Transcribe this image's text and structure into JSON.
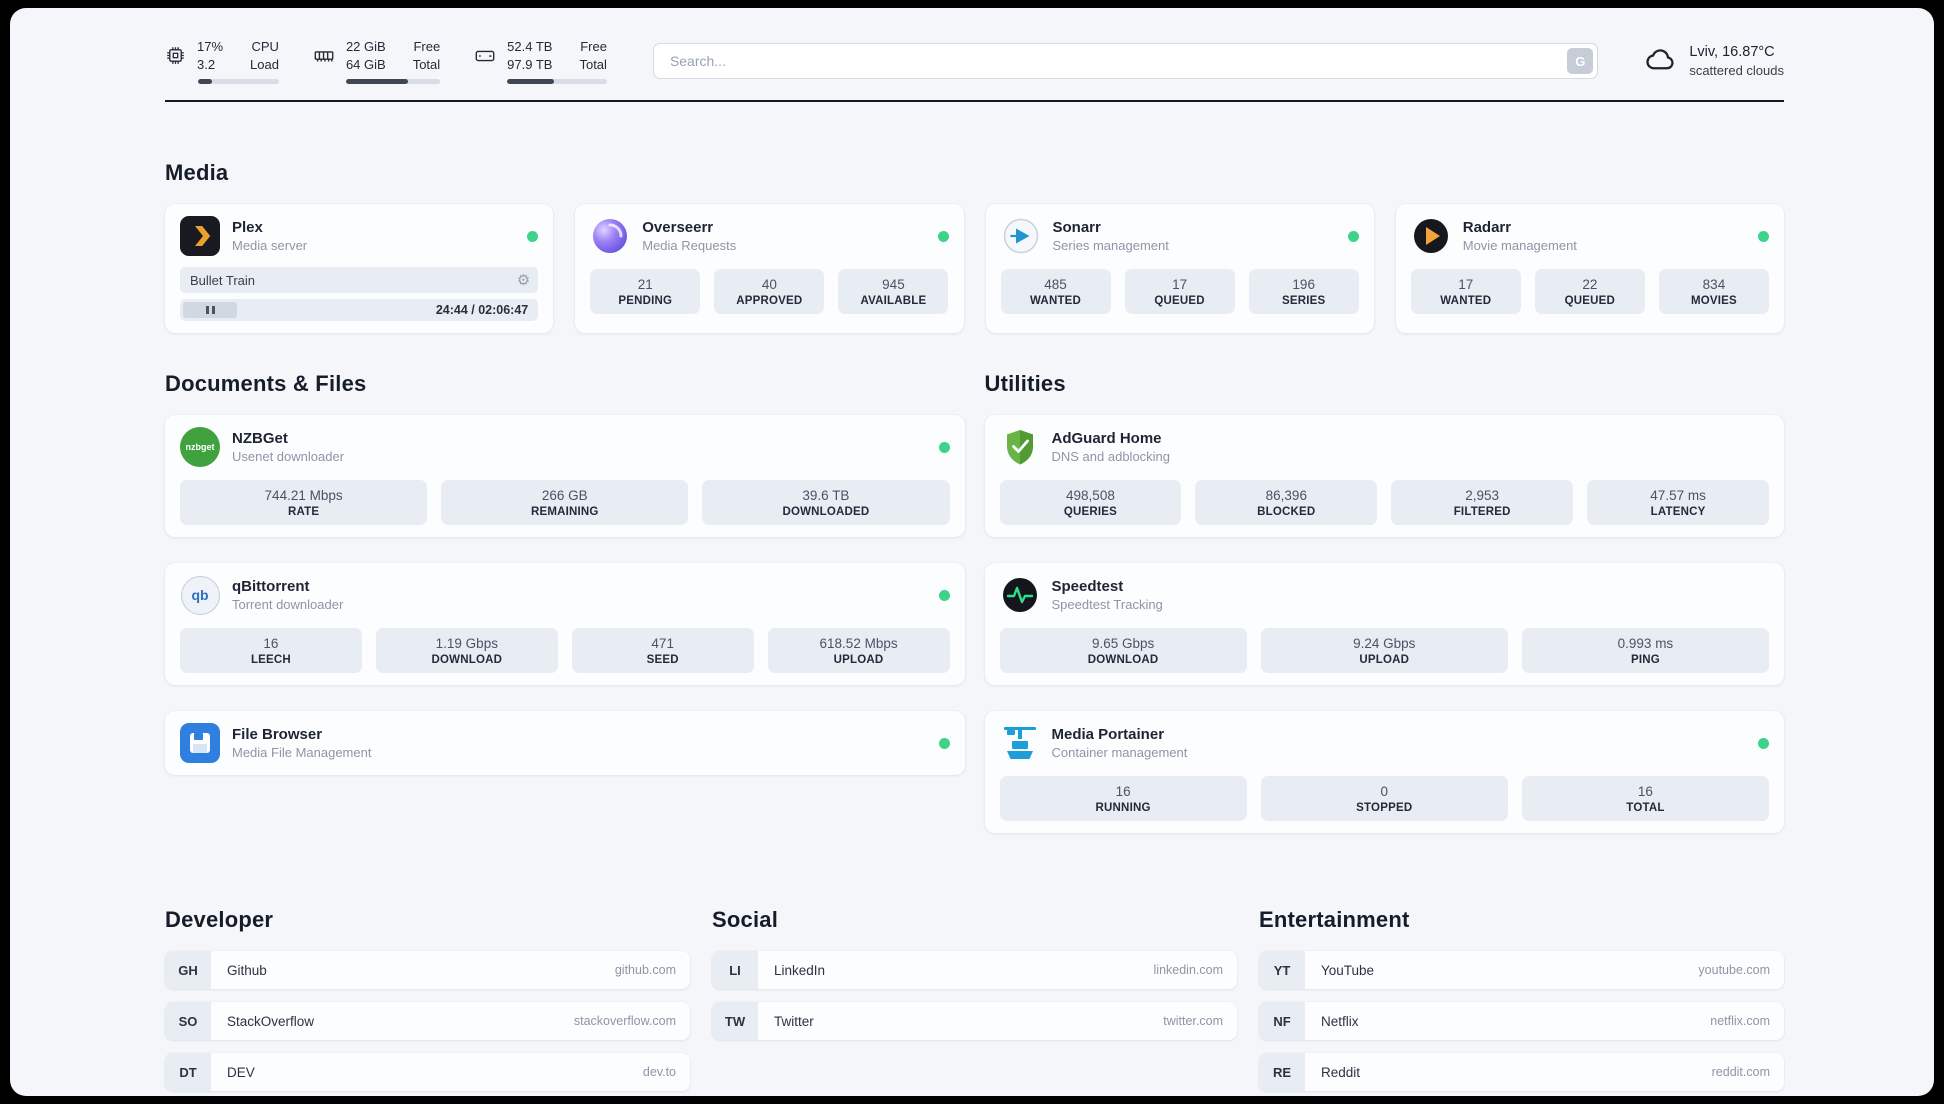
{
  "icons": {
    "gear": "⚙"
  },
  "header": {
    "cpu": {
      "value": "17%",
      "load": "3.2",
      "label_top": "CPU",
      "label_bottom": "Load",
      "percent": 17
    },
    "ram": {
      "free": "22 GiB",
      "total": "64 GiB",
      "label_top": "Free",
      "label_bottom": "Total",
      "percent": 66
    },
    "disk": {
      "free": "52.4 TB",
      "total": "97.9 TB",
      "label_top": "Free",
      "label_bottom": "Total",
      "percent": 47
    },
    "search": {
      "placeholder": "Search...",
      "button_label": "G"
    },
    "weather": {
      "location": "Lviv, 16.87°C",
      "condition": "scattered clouds"
    }
  },
  "sections": {
    "media": {
      "title": "Media"
    },
    "documents": {
      "title": "Documents & Files"
    },
    "utilities": {
      "title": "Utilities"
    }
  },
  "services": {
    "plex": {
      "name": "Plex",
      "subtitle": "Media server",
      "now_playing": "Bullet Train",
      "time": "24:44 / 02:06:47"
    },
    "overseerr": {
      "name": "Overseerr",
      "subtitle": "Media Requests",
      "stats": [
        {
          "value": "21",
          "label": "PENDING"
        },
        {
          "value": "40",
          "label": "APPROVED"
        },
        {
          "value": "945",
          "label": "AVAILABLE"
        }
      ]
    },
    "sonarr": {
      "name": "Sonarr",
      "subtitle": "Series management",
      "stats": [
        {
          "value": "485",
          "label": "WANTED"
        },
        {
          "value": "17",
          "label": "QUEUED"
        },
        {
          "value": "196",
          "label": "SERIES"
        }
      ]
    },
    "radarr": {
      "name": "Radarr",
      "subtitle": "Movie management",
      "stats": [
        {
          "value": "17",
          "label": "WANTED"
        },
        {
          "value": "22",
          "label": "QUEUED"
        },
        {
          "value": "834",
          "label": "MOVIES"
        }
      ]
    },
    "nzbget": {
      "name": "NZBGet",
      "subtitle": "Usenet downloader",
      "icon_text": "nzbget",
      "stats": [
        {
          "value": "744.21 Mbps",
          "label": "RATE"
        },
        {
          "value": "266 GB",
          "label": "REMAINING"
        },
        {
          "value": "39.6 TB",
          "label": "DOWNLOADED"
        }
      ]
    },
    "qbittorrent": {
      "name": "qBittorrent",
      "subtitle": "Torrent downloader",
      "icon_text": "qb",
      "stats": [
        {
          "value": "16",
          "label": "LEECH"
        },
        {
          "value": "1.19 Gbps",
          "label": "DOWNLOAD"
        },
        {
          "value": "471",
          "label": "SEED"
        },
        {
          "value": "618.52 Mbps",
          "label": "UPLOAD"
        }
      ]
    },
    "filebrowser": {
      "name": "File Browser",
      "subtitle": "Media File Management"
    },
    "adguard": {
      "name": "AdGuard Home",
      "subtitle": "DNS and adblocking",
      "stats": [
        {
          "value": "498,508",
          "label": "QUERIES"
        },
        {
          "value": "86,396",
          "label": "BLOCKED"
        },
        {
          "value": "2,953",
          "label": "FILTERED"
        },
        {
          "value": "47.57 ms",
          "label": "LATENCY"
        }
      ]
    },
    "speedtest": {
      "name": "Speedtest",
      "subtitle": "Speedtest Tracking",
      "stats": [
        {
          "value": "9.65 Gbps",
          "label": "DOWNLOAD"
        },
        {
          "value": "9.24 Gbps",
          "label": "UPLOAD"
        },
        {
          "value": "0.993 ms",
          "label": "PING"
        }
      ]
    },
    "portainer": {
      "name": "Media Portainer",
      "subtitle": "Container management",
      "stats": [
        {
          "value": "16",
          "label": "RUNNING"
        },
        {
          "value": "0",
          "label": "STOPPED"
        },
        {
          "value": "16",
          "label": "TOTAL"
        }
      ]
    }
  },
  "bookmarks": {
    "developer": {
      "title": "Developer",
      "items": [
        {
          "abbr": "GH",
          "name": "Github",
          "url": "github.com"
        },
        {
          "abbr": "SO",
          "name": "StackOverflow",
          "url": "stackoverflow.com"
        },
        {
          "abbr": "DT",
          "name": "DEV",
          "url": "dev.to"
        }
      ]
    },
    "social": {
      "title": "Social",
      "items": [
        {
          "abbr": "LI",
          "name": "LinkedIn",
          "url": "linkedin.com"
        },
        {
          "abbr": "TW",
          "name": "Twitter",
          "url": "twitter.com"
        }
      ]
    },
    "entertainment": {
      "title": "Entertainment",
      "items": [
        {
          "abbr": "YT",
          "name": "YouTube",
          "url": "youtube.com"
        },
        {
          "abbr": "NF",
          "name": "Netflix",
          "url": "netflix.com"
        },
        {
          "abbr": "RE",
          "name": "Reddit",
          "url": "reddit.com"
        }
      ]
    }
  }
}
